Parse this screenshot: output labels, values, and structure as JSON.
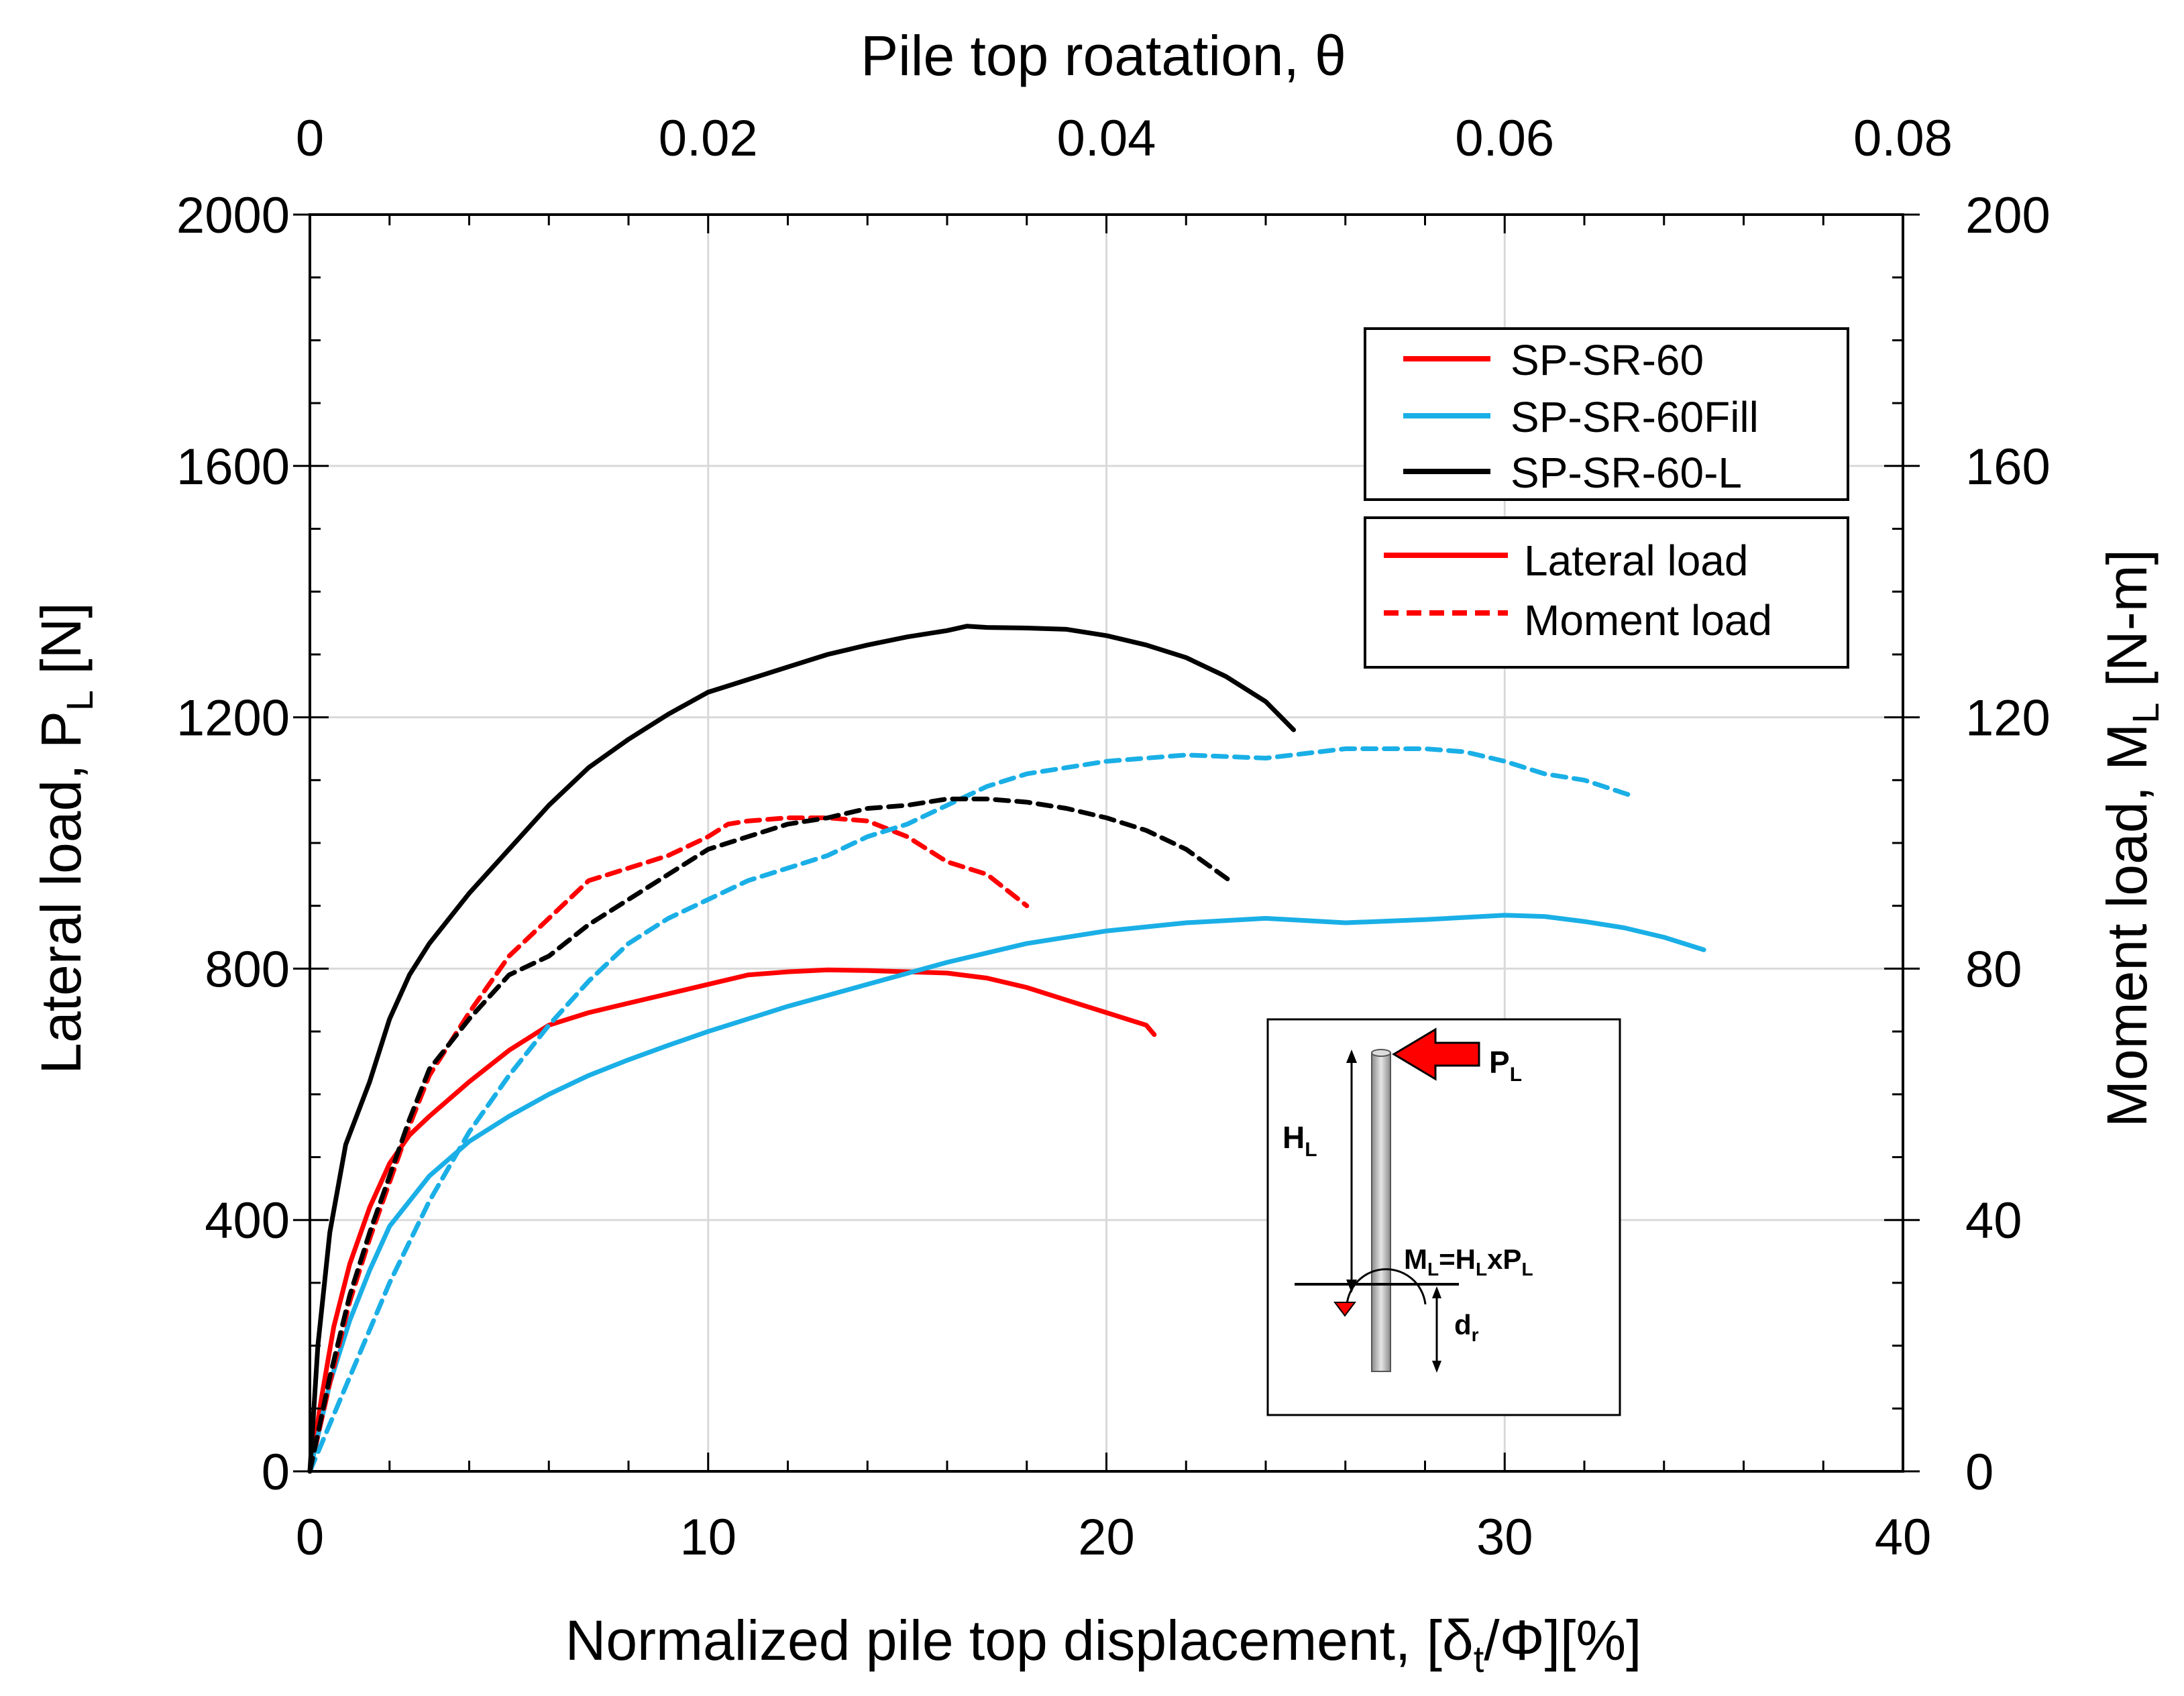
{
  "chart_data": {
    "type": "line",
    "x_axis": {
      "label_prefix": "Normalized pile top displacement, [δ",
      "label_sub": "t",
      "label_suffix": "/Φ][%]",
      "range": [
        0,
        40
      ],
      "ticks": [
        "0",
        "10",
        "20",
        "30",
        "40"
      ]
    },
    "x2_axis": {
      "label": "Pile top roatation, θ",
      "range": [
        0,
        0.08
      ],
      "ticks": [
        "0",
        "0.02",
        "0.04",
        "0.06",
        "0.08"
      ]
    },
    "y_axis": {
      "label_prefix": "Lateral load, P",
      "label_sub": "L",
      "label_suffix": " [N]",
      "range": [
        0,
        2000
      ],
      "ticks": [
        "0",
        "400",
        "800",
        "1200",
        "1600",
        "2000"
      ]
    },
    "y2_axis": {
      "label_prefix": "Moment load, M",
      "label_sub": "L",
      "label_suffix": " [N-m]",
      "range": [
        0,
        200
      ],
      "ticks": [
        "0",
        "40",
        "80",
        "120",
        "160",
        "200"
      ]
    },
    "grid": true,
    "legend_specimens": [
      {
        "name": "SP-SR-60",
        "color": "#ff0000"
      },
      {
        "name": "SP-SR-60Fill",
        "color": "#1aafe6"
      },
      {
        "name": "SP-SR-60-L",
        "color": "#000000"
      }
    ],
    "legend_styles": [
      {
        "name": "Lateral load",
        "dash": false
      },
      {
        "name": "Moment load",
        "dash": true
      }
    ],
    "series": [
      {
        "name": "SP-SR-60 Lateral load",
        "color": "#ff0000",
        "dash": false,
        "axis": "left",
        "x": [
          0,
          0.3,
          0.6,
          1,
          1.5,
          2,
          2.5,
          3,
          4,
          5,
          6,
          7,
          8,
          9,
          10,
          11,
          12,
          13,
          14,
          15,
          16,
          17,
          18,
          19,
          20,
          21,
          21.2
        ],
        "y": [
          0,
          120,
          230,
          330,
          420,
          490,
          535,
          565,
          620,
          670,
          710,
          730,
          745,
          760,
          775,
          790,
          795,
          798,
          797,
          795,
          793,
          785,
          770,
          750,
          730,
          710,
          695
        ]
      },
      {
        "name": "SP-SR-60Fill Lateral load",
        "color": "#1aafe6",
        "dash": false,
        "axis": "left",
        "x": [
          0,
          0.5,
          1,
          1.5,
          2,
          3,
          4,
          5,
          6,
          7,
          8,
          9,
          10,
          12,
          14,
          16,
          18,
          20,
          22,
          24,
          26,
          28,
          30,
          31,
          32,
          33,
          34,
          35
        ],
        "y": [
          0,
          140,
          240,
          320,
          390,
          470,
          525,
          565,
          600,
          630,
          655,
          678,
          700,
          740,
          775,
          810,
          840,
          860,
          873,
          880,
          873,
          878,
          885,
          883,
          875,
          865,
          850,
          830
        ]
      },
      {
        "name": "SP-SR-60-L Lateral load",
        "color": "#000000",
        "dash": false,
        "axis": "left",
        "x": [
          0,
          0.2,
          0.5,
          0.9,
          1.5,
          2,
          2.5,
          3,
          4,
          5,
          6,
          7,
          8,
          9,
          10,
          11,
          12,
          13,
          14,
          15,
          16,
          16.5,
          17,
          18,
          19,
          20,
          21,
          22,
          23,
          24,
          24.7
        ],
        "y": [
          0,
          200,
          380,
          520,
          620,
          720,
          790,
          840,
          920,
          990,
          1060,
          1120,
          1165,
          1205,
          1240,
          1260,
          1280,
          1300,
          1315,
          1328,
          1338,
          1345,
          1343,
          1342,
          1340,
          1330,
          1315,
          1295,
          1265,
          1225,
          1180
        ]
      },
      {
        "name": "SP-SR-60 Moment load",
        "color": "#ff0000",
        "dash": true,
        "axis": "right",
        "x": [
          0,
          0.5,
          1,
          1.5,
          2,
          2.5,
          3,
          4,
          5,
          6,
          7,
          8,
          9,
          10,
          10.5,
          11,
          12,
          13,
          14,
          15,
          16,
          17,
          18
        ],
        "y": [
          0,
          14,
          27,
          37,
          46,
          55,
          63,
          73,
          82,
          88,
          94,
          96,
          98,
          101,
          103,
          103.5,
          104,
          104,
          103.5,
          101,
          97,
          95,
          90
        ]
      },
      {
        "name": "SP-SR-60Fill Moment load",
        "color": "#1aafe6",
        "dash": true,
        "axis": "right",
        "x": [
          0,
          1,
          2,
          3,
          4,
          5,
          6,
          7,
          8,
          9,
          10,
          11,
          12,
          13,
          14,
          15,
          16,
          17,
          18,
          19,
          20,
          22,
          24,
          26,
          28,
          29,
          30,
          31,
          32,
          33.2
        ],
        "y": [
          0,
          15,
          30,
          43,
          54,
          63,
          71,
          78,
          84,
          88,
          91,
          94,
          96,
          98,
          101,
          103,
          106,
          109,
          111,
          112,
          113,
          114,
          113.5,
          115,
          115,
          114.5,
          113,
          111,
          110,
          107.5
        ]
      },
      {
        "name": "SP-SR-60-L Moment load",
        "color": "#000000",
        "dash": true,
        "axis": "right",
        "x": [
          0,
          0.5,
          1,
          1.5,
          2,
          2.5,
          3,
          4,
          5,
          6,
          7,
          8,
          9,
          10,
          11,
          12,
          13,
          14,
          15,
          16,
          17,
          18,
          19,
          20,
          21,
          22,
          23.1
        ],
        "y": [
          0,
          15,
          28,
          38,
          47,
          56,
          64,
          72,
          79,
          82,
          87,
          91,
          95,
          99,
          101,
          103,
          104,
          105.5,
          106,
          107,
          107,
          106.5,
          105.5,
          104,
          102,
          99,
          94
        ]
      }
    ],
    "inset": {
      "load_label": "P",
      "load_sub": "L",
      "height_label": "H",
      "height_sub": "L",
      "moment_m": "M",
      "moment_sub1": "L",
      "moment_eq": "=H",
      "moment_sub2": "L",
      "moment_x": "xP",
      "moment_sub3": "L",
      "depth_label": "d",
      "depth_sub": "r"
    }
  }
}
